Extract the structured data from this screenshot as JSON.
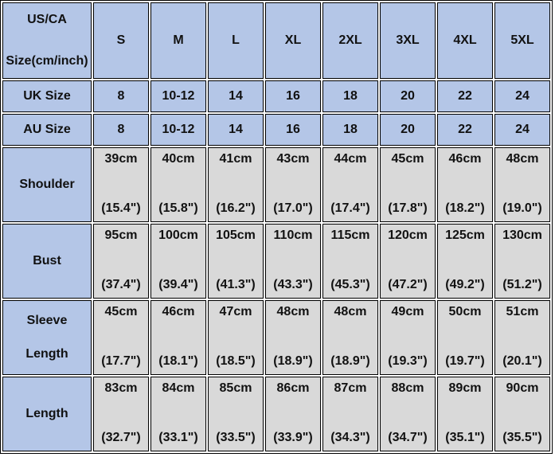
{
  "colors": {
    "header": "#b4c6e7",
    "data": "#d9d9d9",
    "border": "#000000"
  },
  "header": {
    "label_lines": [
      "US/CA",
      "Size(cm/inch)"
    ],
    "sizes": [
      "S",
      "M",
      "L",
      "XL",
      "2XL",
      "3XL",
      "4XL",
      "5XL"
    ]
  },
  "size_rows": [
    {
      "label": "UK Size",
      "values": [
        "8",
        "10-12",
        "14",
        "16",
        "18",
        "20",
        "22",
        "24"
      ]
    },
    {
      "label": "AU Size",
      "values": [
        "8",
        "10-12",
        "14",
        "16",
        "18",
        "20",
        "22",
        "24"
      ]
    }
  ],
  "measure_rows": [
    {
      "label_lines": [
        "Shoulder"
      ],
      "cm": [
        "39cm",
        "40cm",
        "41cm",
        "43cm",
        "44cm",
        "45cm",
        "46cm",
        "48cm"
      ],
      "inch": [
        "(15.4\")",
        "(15.8\")",
        "(16.2\")",
        "(17.0\")",
        "(17.4\")",
        "(17.8\")",
        "(18.2\")",
        "(19.0\")"
      ]
    },
    {
      "label_lines": [
        "Bust"
      ],
      "cm": [
        "95cm",
        "100cm",
        "105cm",
        "110cm",
        "115cm",
        "120cm",
        "125cm",
        "130cm"
      ],
      "inch": [
        "(37.4\")",
        "(39.4\")",
        "(41.3\")",
        "(43.3\")",
        "(45.3\")",
        "(47.2\")",
        "(49.2\")",
        "(51.2\")"
      ]
    },
    {
      "label_lines": [
        "Sleeve",
        "Length"
      ],
      "cm": [
        "45cm",
        "46cm",
        "47cm",
        "48cm",
        "48cm",
        "49cm",
        "50cm",
        "51cm"
      ],
      "inch": [
        "(17.7\")",
        "(18.1\")",
        "(18.5\")",
        "(18.9\")",
        "(18.9\")",
        "(19.3\")",
        "(19.7\")",
        "(20.1\")"
      ]
    },
    {
      "label_lines": [
        "Length"
      ],
      "cm": [
        "83cm",
        "84cm",
        "85cm",
        "86cm",
        "87cm",
        "88cm",
        "89cm",
        "90cm"
      ],
      "inch": [
        "(32.7\")",
        "(33.1\")",
        "(33.5\")",
        "(33.9\")",
        "(34.3\")",
        "(34.7\")",
        "(35.1\")",
        "(35.5\")"
      ]
    }
  ]
}
